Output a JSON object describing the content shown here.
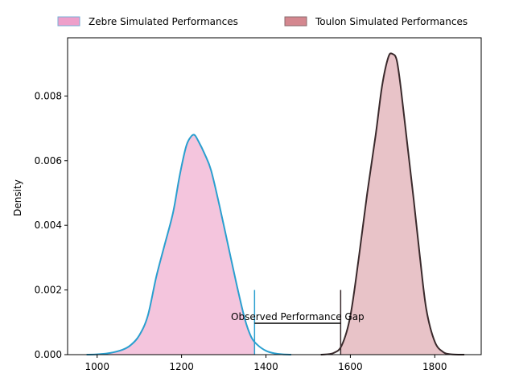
{
  "chart_data": {
    "type": "area",
    "title": "",
    "xlabel": "",
    "ylabel": "Density",
    "xlim": [
      930,
      1910
    ],
    "ylim": [
      0,
      0.0098
    ],
    "x_ticks": [
      "1000",
      "1200",
      "1400",
      "1600",
      "1800"
    ],
    "x_tick_values": [
      1000,
      1200,
      1400,
      1600,
      1800
    ],
    "y_ticks": [
      "0.000",
      "0.002",
      "0.004",
      "0.006",
      "0.008"
    ],
    "y_tick_values": [
      0,
      0.002,
      0.004,
      0.006,
      0.008
    ],
    "legend_position": "top-center",
    "grid": false,
    "series": [
      {
        "name": "Zebre Simulated Performances",
        "fill": "#f4c5dd",
        "line": "#2a9fcf",
        "legend_fill": "#ee9fca",
        "legend_edge": "#7aaed6",
        "shade_to_x": 1373,
        "x": [
          975,
          1000,
          1030,
          1060,
          1080,
          1100,
          1120,
          1140,
          1160,
          1180,
          1195,
          1210,
          1220,
          1230,
          1240,
          1255,
          1270,
          1290,
          1310,
          1330,
          1350,
          1365,
          1380,
          1400,
          1420,
          1440,
          1460
        ],
        "y": [
          0.0,
          1e-05,
          5e-05,
          0.00015,
          0.0003,
          0.0006,
          0.0012,
          0.0024,
          0.0034,
          0.0044,
          0.0055,
          0.0064,
          0.0067,
          0.0068,
          0.0066,
          0.0062,
          0.0057,
          0.0046,
          0.0034,
          0.0022,
          0.0011,
          0.00055,
          0.0003,
          0.00012,
          4e-05,
          1e-05,
          0.0
        ]
      },
      {
        "name": "Toulon Simulated Performances",
        "fill": "#e8c3c8",
        "line": "#3a2a2c",
        "legend_fill": "#d4878f",
        "legend_edge": "#8a6a6e",
        "shade_from_x": 1577,
        "x": [
          1530,
          1560,
          1580,
          1600,
          1620,
          1640,
          1660,
          1675,
          1690,
          1700,
          1710,
          1720,
          1735,
          1750,
          1765,
          1780,
          1800,
          1820,
          1840,
          1870
        ],
        "y": [
          0.0,
          5e-05,
          0.0003,
          0.0012,
          0.003,
          0.005,
          0.0068,
          0.0083,
          0.0092,
          0.0093,
          0.0091,
          0.0082,
          0.0065,
          0.0048,
          0.003,
          0.0014,
          0.0004,
          8e-05,
          1e-05,
          0.0
        ]
      }
    ],
    "annotations": [
      {
        "text": "Observed Performance Gap",
        "x_start": 1373,
        "x_end": 1577,
        "y": 0.00097,
        "marker_top": 0.002,
        "start_color": "#2a9fcf",
        "end_color": "#3a2a2c"
      }
    ]
  }
}
